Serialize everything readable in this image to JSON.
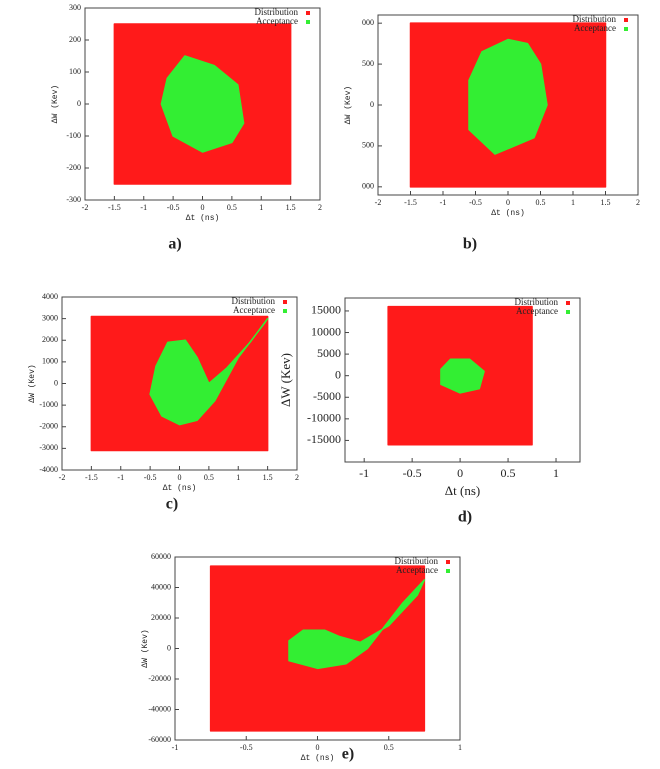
{
  "chart_data": [
    {
      "type": "scatter",
      "caption": "a)",
      "x_label": "Δt (ns)",
      "y_label": "ΔW (Kev)",
      "xlim": [
        -2,
        2
      ],
      "ylim": [
        -300,
        300
      ],
      "xticks": [
        -2,
        -1.5,
        -1,
        -0.5,
        0,
        0.5,
        1,
        1.5,
        2
      ],
      "yticks": [
        -300,
        -200,
        -100,
        0,
        100,
        200,
        300
      ],
      "series": [
        {
          "name": "Distribution",
          "color": "#ff1a1a",
          "x": [
            -1.5,
            1.5,
            1.5,
            -1.5
          ],
          "y": [
            -250,
            -250,
            250,
            250
          ]
        },
        {
          "name": "Acceptance",
          "color": "#33ee33",
          "x": [
            -0.6,
            -0.3,
            0.2,
            0.6,
            0.7,
            0.5,
            0,
            -0.5,
            -0.7
          ],
          "y": [
            80,
            150,
            120,
            60,
            -60,
            -120,
            -150,
            -100,
            0
          ]
        }
      ]
    },
    {
      "type": "scatter",
      "caption": "b)",
      "x_label": "Δt (ns)",
      "y_label": "ΔW (Kev)",
      "xlim": [
        -2,
        2
      ],
      "ylim": [
        -1100,
        1100
      ],
      "xticks": [
        -2,
        -1.5,
        -1,
        -0.5,
        0,
        0.5,
        1,
        1.5,
        2
      ],
      "yticks": [
        {
          "value": -1000,
          "label": "000"
        },
        {
          "value": -500,
          "label": "500"
        },
        0,
        {
          "value": 500,
          "label": "500"
        },
        {
          "value": 1000,
          "label": "000"
        }
      ],
      "series": [
        {
          "name": "Distribution",
          "color": "#ff1a1a",
          "x": [
            -1.5,
            1.5,
            1.5,
            -1.5
          ],
          "y": [
            -1000,
            -1000,
            1000,
            1000
          ]
        },
        {
          "name": "Acceptance",
          "color": "#33ee33",
          "x": [
            -0.6,
            -0.4,
            0,
            0.3,
            0.5,
            0.6,
            0.4,
            -0.2,
            -0.6
          ],
          "y": [
            300,
            650,
            800,
            750,
            500,
            0,
            -400,
            -600,
            -300
          ]
        }
      ]
    },
    {
      "type": "scatter",
      "caption": "c)",
      "x_label": "Δt (ns)",
      "y_label": "ΔW (Kev)",
      "xlim": [
        -2,
        2
      ],
      "ylim": [
        -4000,
        4000
      ],
      "xticks": [
        -2,
        -1.5,
        -1,
        -0.5,
        0,
        0.5,
        1,
        1.5,
        2
      ],
      "yticks": [
        -4000,
        -3000,
        -2000,
        -1000,
        0,
        1000,
        2000,
        3000,
        4000
      ],
      "series": [
        {
          "name": "Distribution",
          "color": "#ff1a1a",
          "x": [
            -1.5,
            1.5,
            1.5,
            -1.5
          ],
          "y": [
            -3100,
            -3100,
            3100,
            3100
          ]
        },
        {
          "name": "Acceptance",
          "color": "#33ee33",
          "x": [
            -0.4,
            -0.2,
            0.1,
            0.3,
            0.5,
            0.8,
            1.2,
            1.5,
            1.45,
            1.0,
            0.6,
            0.3,
            0,
            -0.3,
            -0.5
          ],
          "y": [
            800,
            1900,
            2000,
            1200,
            0,
            700,
            1900,
            3000,
            2800,
            1200,
            -800,
            -1700,
            -1900,
            -1500,
            -500
          ]
        }
      ]
    },
    {
      "type": "scatter",
      "caption": "d)",
      "x_label": "Δt (ns)",
      "y_label": "ΔW (Kev)",
      "xlim": [
        -1.2,
        1.25
      ],
      "ylim": [
        -20000,
        18000
      ],
      "xticks": [
        -1,
        -0.5,
        0,
        0.5,
        1
      ],
      "yticks": [
        -15000,
        -10000,
        -5000,
        0,
        5000,
        10000,
        15000
      ],
      "series": [
        {
          "name": "Distribution",
          "color": "#ff1a1a",
          "x": [
            -0.75,
            0.75,
            0.75,
            -0.75
          ],
          "y": [
            -16000,
            -16000,
            16000,
            16000
          ]
        },
        {
          "name": "Acceptance",
          "color": "#33ee33",
          "x": [
            -0.2,
            -0.1,
            0.1,
            0.25,
            0.2,
            0,
            -0.2
          ],
          "y": [
            1500,
            3800,
            3800,
            1000,
            -3000,
            -4000,
            -2000
          ]
        }
      ]
    },
    {
      "type": "scatter",
      "caption": "e)",
      "x_label": "Δt (ns)",
      "y_label": "ΔW (Kev)",
      "xlim": [
        -1,
        1
      ],
      "ylim": [
        -60000,
        60000
      ],
      "xticks": [
        -1,
        -0.5,
        0,
        0.5,
        1
      ],
      "yticks": [
        -60000,
        -40000,
        -20000,
        0,
        20000,
        40000,
        60000
      ],
      "series": [
        {
          "name": "Distribution",
          "color": "#ff1a1a",
          "x": [
            -0.75,
            0.75,
            0.75,
            -0.75
          ],
          "y": [
            -54000,
            -54000,
            54000,
            54000
          ]
        },
        {
          "name": "Acceptance",
          "color": "#33ee33",
          "x": [
            -0.2,
            -0.1,
            0.05,
            0.15,
            0.3,
            0.5,
            0.7,
            0.75,
            0.6,
            0.35,
            0.2,
            0,
            -0.2
          ],
          "y": [
            5000,
            12000,
            12000,
            8000,
            4000,
            15000,
            35000,
            45000,
            30000,
            0,
            -10000,
            -13000,
            -8000
          ]
        }
      ]
    }
  ]
}
